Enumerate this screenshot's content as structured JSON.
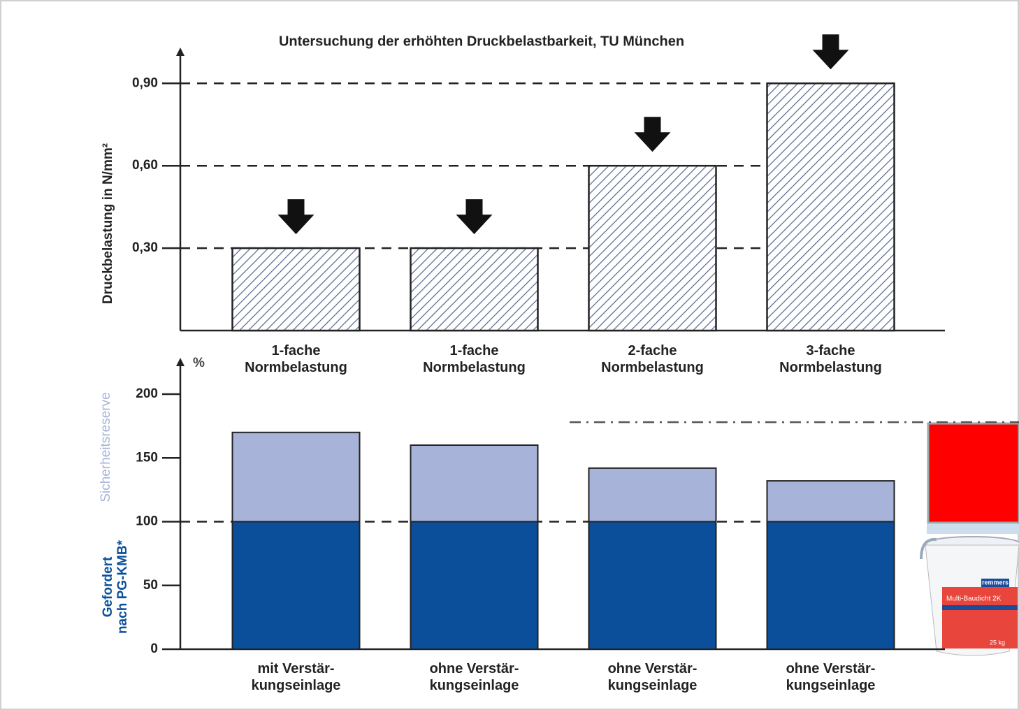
{
  "chart_data": [
    {
      "type": "bar",
      "title": "Untersuchung der erhöhten Druckbelastbarkeit, TU München",
      "y_label": "Druckbelastung in N/mm²",
      "categories": [
        [
          "1-fache",
          "Normbelastung"
        ],
        [
          "1-fache",
          "Normbelastung"
        ],
        [
          "2-fache",
          "Normbelastung"
        ],
        [
          "3-fache",
          "Normbelastung"
        ]
      ],
      "values": [
        0.3,
        0.3,
        0.6,
        0.9
      ],
      "color": "#5a6a90",
      "ylim": [
        0,
        1.0
      ],
      "yticks": [
        {
          "value": 0.3,
          "label": "0,30"
        },
        {
          "value": 0.6,
          "label": "0,60"
        },
        {
          "value": 0.9,
          "label": "0,90"
        }
      ],
      "grid": true
    },
    {
      "type": "stacked_bar",
      "y_unit": "%",
      "categories": [
        [
          "mit Verstär-",
          "kungseinlage"
        ],
        [
          "ohne Verstär-",
          "kungseinlage"
        ],
        [
          "ohne Verstär-",
          "kungseinlage"
        ],
        [
          "ohne Verstär-",
          "kungseinlage"
        ]
      ],
      "series": [
        {
          "name": [
            "Gefordert",
            "nach PG-KMB*"
          ],
          "color": "#0b4f9b",
          "values": [
            100,
            100,
            100,
            100
          ]
        },
        {
          "name": "Sicherheitsreserve",
          "color": "#a7b3d8",
          "values": [
            70,
            60,
            42,
            32
          ]
        }
      ],
      "ylim": [
        0,
        220
      ],
      "yticks": [
        0,
        50,
        100,
        150,
        200
      ],
      "reference_lines": [
        {
          "value": 100,
          "style": "dashed"
        },
        {
          "value": 178,
          "style": "dash-dot"
        }
      ]
    }
  ],
  "product": {
    "brand": "remmers",
    "name": "Multi-Baudicht 2K",
    "weight": "25 kg"
  }
}
